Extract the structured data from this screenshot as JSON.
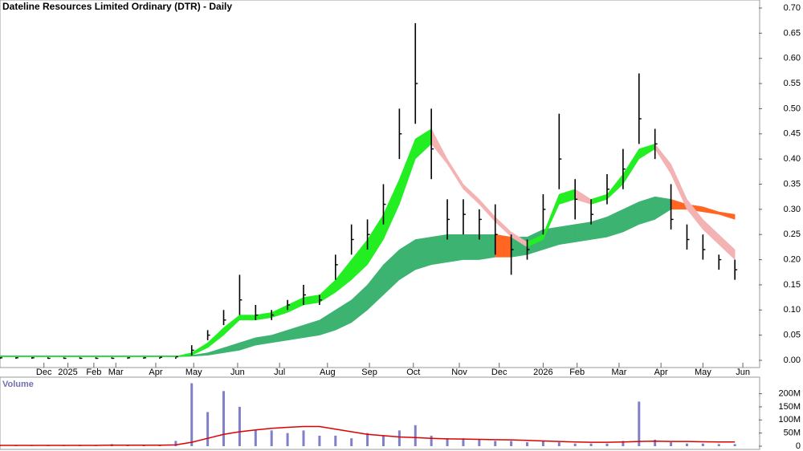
{
  "chart_data": [
    {
      "type": "hlc",
      "title": "Dateline Resources Limited Ordinary (DTR) - Daily",
      "x": [
        0,
        8,
        16,
        24,
        32,
        40,
        48,
        56,
        64,
        72,
        80,
        88,
        96,
        104,
        112,
        120,
        128,
        136,
        144,
        152,
        160,
        168,
        176,
        184,
        192,
        200,
        208,
        216,
        224,
        232,
        240,
        248,
        256,
        264,
        272,
        280,
        288,
        296,
        304,
        312,
        320,
        328,
        336,
        344,
        352,
        360,
        368
      ],
      "close": [
        0.005,
        0.005,
        0.005,
        0.004,
        0.004,
        0.004,
        0.004,
        0.004,
        0.005,
        0.005,
        0.006,
        0.007,
        0.02,
        0.05,
        0.08,
        0.12,
        0.09,
        0.09,
        0.11,
        0.13,
        0.12,
        0.19,
        0.24,
        0.25,
        0.31,
        0.45,
        0.55,
        0.42,
        0.28,
        0.29,
        0.28,
        0.25,
        0.22,
        0.22,
        0.3,
        0.4,
        0.32,
        0.29,
        0.34,
        0.38,
        0.48,
        0.43,
        0.28,
        0.24,
        0.22,
        0.2,
        0.18
      ],
      "high": [
        0.006,
        0.006,
        0.006,
        0.006,
        0.006,
        0.006,
        0.006,
        0.006,
        0.006,
        0.006,
        0.006,
        0.006,
        0.03,
        0.06,
        0.1,
        0.17,
        0.11,
        0.1,
        0.12,
        0.15,
        0.13,
        0.21,
        0.27,
        0.28,
        0.35,
        0.5,
        0.67,
        0.5,
        0.32,
        0.32,
        0.3,
        0.31,
        0.25,
        0.24,
        0.33,
        0.49,
        0.36,
        0.32,
        0.37,
        0.42,
        0.57,
        0.46,
        0.35,
        0.27,
        0.25,
        0.21,
        0.2
      ],
      "low": [
        0.003,
        0.003,
        0.003,
        0.003,
        0.003,
        0.003,
        0.003,
        0.003,
        0.003,
        0.003,
        0.003,
        0.003,
        0.01,
        0.04,
        0.07,
        0.09,
        0.08,
        0.08,
        0.1,
        0.11,
        0.11,
        0.16,
        0.21,
        0.22,
        0.27,
        0.4,
        0.47,
        0.36,
        0.24,
        0.25,
        0.24,
        0.21,
        0.17,
        0.2,
        0.25,
        0.34,
        0.28,
        0.27,
        0.31,
        0.34,
        0.43,
        0.4,
        0.26,
        0.22,
        0.2,
        0.18,
        0.16
      ],
      "color": "#000000",
      "short_band": {
        "top": [
          0.008,
          0.008,
          0.008,
          0.008,
          0.008,
          0.008,
          0.008,
          0.008,
          0.008,
          0.008,
          0.008,
          0.008,
          0.015,
          0.035,
          0.065,
          0.09,
          0.09,
          0.095,
          0.11,
          0.125,
          0.13,
          0.16,
          0.2,
          0.24,
          0.29,
          0.36,
          0.44,
          0.46,
          0.4,
          0.35,
          0.32,
          0.285,
          0.255,
          0.235,
          0.25,
          0.33,
          0.34,
          0.32,
          0.33,
          0.37,
          0.42,
          0.43,
          0.39,
          0.32,
          0.28,
          0.25,
          0.22
        ],
        "bottom": [
          0.007,
          0.007,
          0.007,
          0.007,
          0.007,
          0.007,
          0.007,
          0.007,
          0.007,
          0.007,
          0.007,
          0.007,
          0.01,
          0.025,
          0.05,
          0.08,
          0.08,
          0.085,
          0.095,
          0.11,
          0.115,
          0.135,
          0.16,
          0.19,
          0.24,
          0.31,
          0.4,
          0.43,
          0.39,
          0.34,
          0.31,
          0.275,
          0.245,
          0.225,
          0.24,
          0.31,
          0.32,
          0.31,
          0.32,
          0.35,
          0.4,
          0.42,
          0.37,
          0.3,
          0.26,
          0.23,
          0.2
        ],
        "rise_color": "#22ee22",
        "fall_color": "#ff6622",
        "weak_color": "#f4b3b3"
      },
      "long_band": {
        "top": [
          0.009,
          0.009,
          0.009,
          0.009,
          0.009,
          0.009,
          0.009,
          0.009,
          0.009,
          0.009,
          0.009,
          0.009,
          0.01,
          0.015,
          0.025,
          0.035,
          0.045,
          0.05,
          0.06,
          0.07,
          0.08,
          0.1,
          0.12,
          0.15,
          0.19,
          0.22,
          0.24,
          0.245,
          0.25,
          0.25,
          0.25,
          0.25,
          0.245,
          0.245,
          0.26,
          0.265,
          0.27,
          0.275,
          0.285,
          0.3,
          0.315,
          0.325,
          0.32,
          0.31,
          0.305,
          0.295,
          0.29
        ],
        "bottom": [
          0.007,
          0.007,
          0.007,
          0.007,
          0.007,
          0.007,
          0.007,
          0.007,
          0.007,
          0.007,
          0.007,
          0.007,
          0.008,
          0.01,
          0.015,
          0.02,
          0.03,
          0.035,
          0.04,
          0.045,
          0.05,
          0.06,
          0.075,
          0.1,
          0.13,
          0.16,
          0.18,
          0.19,
          0.195,
          0.2,
          0.2,
          0.205,
          0.205,
          0.21,
          0.22,
          0.23,
          0.235,
          0.24,
          0.245,
          0.255,
          0.27,
          0.28,
          0.3,
          0.3,
          0.295,
          0.29,
          0.28
        ],
        "rise_color": "#3cb371",
        "fall_color": "#ff6622"
      },
      "xlim": [
        0,
        380
      ],
      "xticks": [
        {
          "value": 22,
          "label": "Dec"
        },
        {
          "value": 34,
          "label": "2025"
        },
        {
          "value": 47,
          "label": "Feb"
        },
        {
          "value": 58,
          "label": "Mar"
        },
        {
          "value": 78,
          "label": "Apr"
        },
        {
          "value": 97,
          "label": "May"
        },
        {
          "value": 119,
          "label": "Jun"
        },
        {
          "value": 140,
          "label": "Jul"
        },
        {
          "value": 164,
          "label": "Aug"
        },
        {
          "value": 185,
          "label": "Sep"
        },
        {
          "value": 207,
          "label": "Oct"
        },
        {
          "value": 230,
          "label": "Nov"
        },
        {
          "value": 250,
          "label": "Dec"
        },
        {
          "value": 272,
          "label": "2026"
        },
        {
          "value": 289,
          "label": "Feb"
        },
        {
          "value": 310,
          "label": "Mar"
        },
        {
          "value": 331,
          "label": "Apr"
        },
        {
          "value": 352,
          "label": "May"
        },
        {
          "value": 372,
          "label": "Jun"
        }
      ],
      "ylim": [
        0,
        0.7
      ],
      "yticks": [
        {
          "value": 0,
          "label": "0.00"
        },
        0.05,
        {
          "value": 0.1,
          "label": "0.10"
        },
        0.15,
        {
          "value": 0.2,
          "label": "0.20"
        },
        0.25,
        {
          "value": 0.3,
          "label": "0.30"
        },
        0.35,
        {
          "value": 0.4,
          "label": "0.40"
        },
        0.45,
        {
          "value": 0.5,
          "label": "0.50"
        },
        0.55,
        {
          "value": 0.6,
          "label": "0.60"
        },
        0.65,
        {
          "value": 0.7,
          "label": "0.70"
        }
      ]
    },
    {
      "type": "bar",
      "title": "Volume",
      "x": [
        0,
        8,
        16,
        24,
        32,
        40,
        48,
        56,
        64,
        72,
        80,
        88,
        96,
        104,
        112,
        120,
        128,
        136,
        144,
        152,
        160,
        168,
        176,
        184,
        192,
        200,
        208,
        216,
        224,
        232,
        240,
        248,
        256,
        264,
        272,
        280,
        288,
        296,
        304,
        312,
        320,
        328,
        336,
        344,
        352,
        360,
        368
      ],
      "values": [
        3,
        3,
        2,
        3,
        2,
        5,
        3,
        8,
        3,
        4,
        3,
        20,
        240,
        130,
        210,
        150,
        60,
        60,
        50,
        60,
        40,
        40,
        30,
        50,
        40,
        60,
        80,
        40,
        30,
        30,
        25,
        20,
        20,
        15,
        20,
        15,
        10,
        10,
        10,
        20,
        170,
        25,
        15,
        10,
        10,
        8,
        8
      ],
      "color": "#8080c8",
      "average": {
        "values": [
          3,
          3,
          3,
          3,
          3,
          3,
          3,
          4,
          4,
          4,
          4,
          5,
          15,
          30,
          45,
          55,
          62,
          68,
          72,
          75,
          75,
          65,
          55,
          45,
          40,
          35,
          33,
          30,
          28,
          27,
          26,
          25,
          24,
          22,
          20,
          18,
          16,
          15,
          15,
          16,
          18,
          19,
          18,
          18,
          17,
          16,
          16
        ],
        "color": "#dd0000"
      },
      "xlim": [
        0,
        380
      ],
      "ylim": [
        0,
        260
      ],
      "yticks": [
        0,
        {
          "value": 50,
          "label": "50M"
        },
        {
          "value": 100,
          "label": "100M"
        },
        {
          "value": 150,
          "label": "150M"
        },
        {
          "value": 200,
          "label": "200M"
        }
      ]
    }
  ]
}
